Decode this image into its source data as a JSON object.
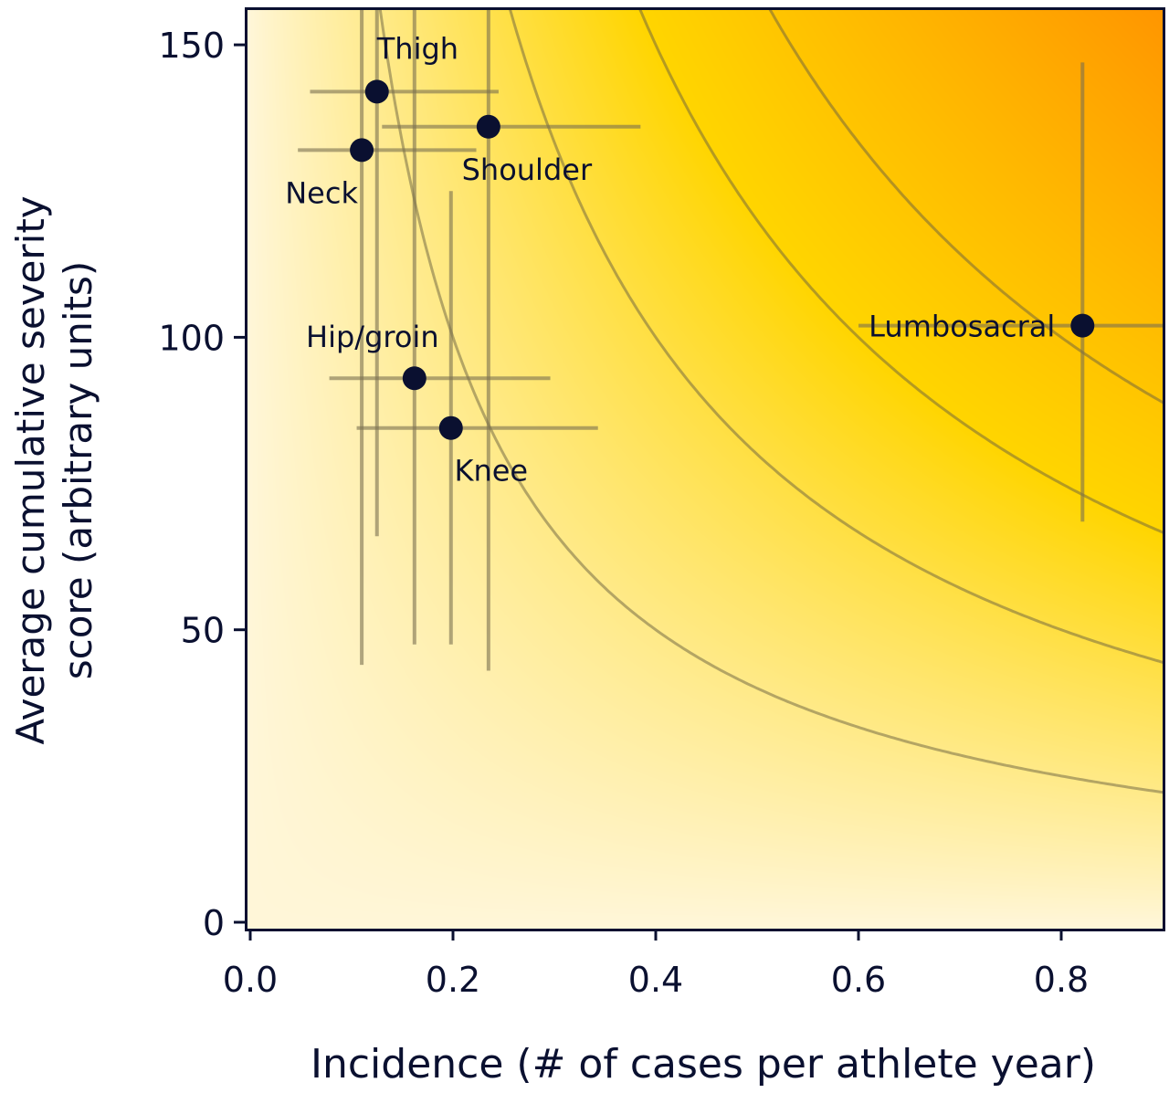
{
  "chart_data": {
    "type": "scatter",
    "xlabel": "Incidence (# of cases per athlete year)",
    "ylabel_lines": [
      "Average cumulative severity",
      "score (arbitrary units)"
    ],
    "xlim": [
      0.0,
      0.9
    ],
    "ylim": [
      0,
      156
    ],
    "xticks": [
      "0.0",
      "0.2",
      "0.4",
      "0.6",
      "0.8"
    ],
    "yticks": [
      "0",
      "50",
      "100",
      "150"
    ],
    "grid": false,
    "background": "gradient by incidence × severity (cream → yellow → orange)",
    "colors": {
      "low": "#FFF6D8",
      "mid": "#FFD500",
      "high": "#FF9600",
      "point": "#0a1030",
      "errorbar": "#7a7050"
    },
    "isolines_product": [
      20,
      40,
      60,
      80
    ],
    "points": [
      {
        "label": "Thigh",
        "x": 0.125,
        "y": 142,
        "xerr": [
          0.059,
          0.245
        ],
        "yerr": [
          66,
          160
        ]
      },
      {
        "label": "Neck",
        "x": 0.11,
        "y": 132,
        "xerr": [
          0.047,
          0.223
        ],
        "yerr": [
          44,
          160
        ]
      },
      {
        "label": "Shoulder",
        "x": 0.235,
        "y": 136,
        "xerr": [
          0.13,
          0.385
        ],
        "yerr": [
          43,
          160
        ]
      },
      {
        "label": "Hip/groin",
        "x": 0.162,
        "y": 93,
        "xerr": [
          0.078,
          0.296
        ],
        "yerr": [
          47.5,
          160
        ]
      },
      {
        "label": "Knee",
        "x": 0.198,
        "y": 84.5,
        "xerr": [
          0.105,
          0.343
        ],
        "yerr": [
          47.5,
          125
        ]
      },
      {
        "label": "Lumbosacral",
        "x": 0.821,
        "y": 102,
        "xerr": [
          0.6,
          1.0
        ],
        "yerr": [
          68.5,
          147
        ]
      }
    ]
  }
}
